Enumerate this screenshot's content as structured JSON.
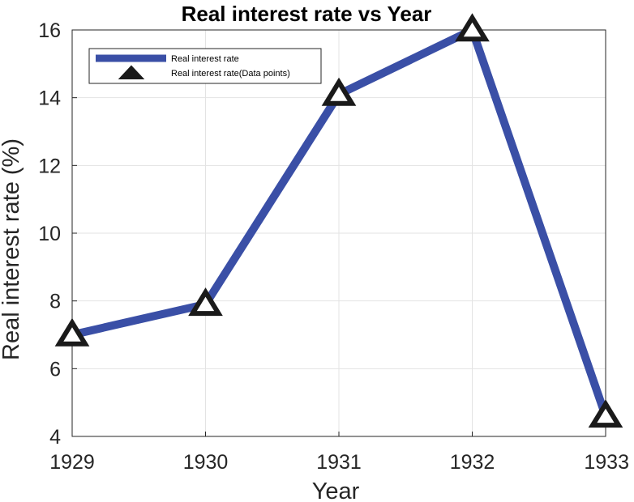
{
  "chart_data": {
    "type": "line",
    "title": "Real interest rate vs Year",
    "xlabel": "Year",
    "ylabel": "Real interest rate (%)",
    "x": [
      1929,
      1930,
      1931,
      1932,
      1933
    ],
    "xlim": [
      1929,
      1933
    ],
    "ylim": [
      4,
      16
    ],
    "xticks": [
      1929,
      1930,
      1931,
      1932,
      1933
    ],
    "yticks": [
      4,
      6,
      8,
      10,
      12,
      14,
      16
    ],
    "grid": true,
    "legend_position": "top-left",
    "series": [
      {
        "name": "Real interest rate",
        "style": "line",
        "color": "#3a4fa6",
        "values": [
          7.0,
          7.9,
          14.1,
          16.0,
          4.6
        ]
      },
      {
        "name": "Real interest rate(Data points)",
        "style": "marker",
        "marker": "triangle",
        "color": "#1a1a1a",
        "values": [
          7.0,
          7.9,
          14.1,
          16.0,
          4.6
        ]
      }
    ]
  }
}
